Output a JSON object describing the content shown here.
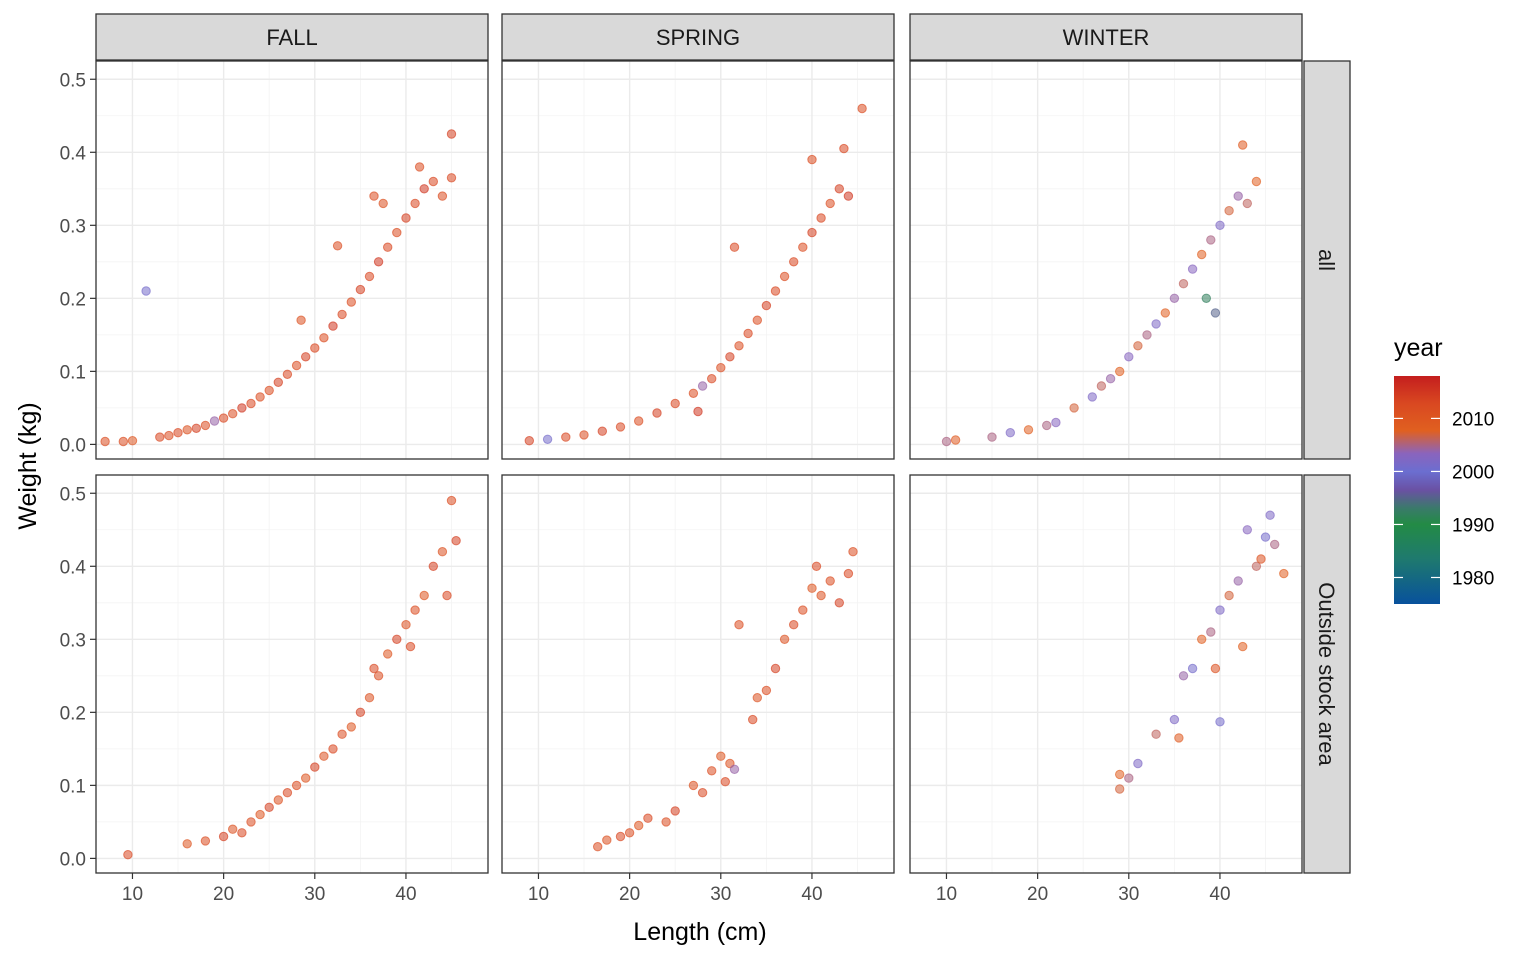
{
  "chart_data": {
    "type": "scatter",
    "xlabel": "Length (cm)",
    "ylabel": "Weight (kg)",
    "xlim": [
      6,
      49
    ],
    "ylim": [
      -0.02,
      0.525
    ],
    "x_ticks": [
      "10",
      "20",
      "30",
      "40"
    ],
    "y_ticks": [
      "0.0",
      "0.1",
      "0.2",
      "0.3",
      "0.4",
      "0.5"
    ],
    "x_tick_values": [
      10,
      20,
      30,
      40
    ],
    "y_tick_values": [
      0.0,
      0.1,
      0.2,
      0.3,
      0.4,
      0.5
    ],
    "facet_columns": [
      "FALL",
      "SPRING",
      "WINTER"
    ],
    "facet_rows": [
      "all",
      "Outside stock area"
    ],
    "grid": true,
    "legend": {
      "title": "year",
      "type": "colorbar",
      "placement": "right",
      "range": [
        1975,
        2018
      ],
      "breaks": [
        "2010",
        "2000",
        "1990",
        "1980"
      ],
      "break_values": [
        2010,
        2000,
        1990,
        1980
      ],
      "colors": [
        "#08519c",
        "#1f7a6e",
        "#238b45",
        "#3a7a6a",
        "#6a51a3",
        "#6b6ed0",
        "#8a64bd",
        "#e06020",
        "#d94821",
        "#c41e1e"
      ],
      "color_stops": [
        0,
        0.2,
        0.35,
        0.42,
        0.5,
        0.58,
        0.66,
        0.76,
        0.88,
        1.0
      ]
    },
    "point_opacity": 0.55,
    "panels": [
      {
        "column": "FALL",
        "row": "all",
        "points": [
          [
            7,
            0.004,
            2012
          ],
          [
            9,
            0.004,
            2012
          ],
          [
            10,
            0.005,
            2010
          ],
          [
            11.5,
            0.21,
            2001
          ],
          [
            13,
            0.01,
            2013
          ],
          [
            14,
            0.012,
            2012
          ],
          [
            15,
            0.016,
            2013
          ],
          [
            16,
            0.02,
            2011
          ],
          [
            17,
            0.022,
            2014
          ],
          [
            18,
            0.026,
            2012
          ],
          [
            19,
            0.032,
            2004
          ],
          [
            20,
            0.036,
            2013
          ],
          [
            21,
            0.042,
            2012
          ],
          [
            22,
            0.05,
            2015
          ],
          [
            23,
            0.056,
            2013
          ],
          [
            24,
            0.065,
            2012
          ],
          [
            25,
            0.074,
            2012
          ],
          [
            26,
            0.085,
            2014
          ],
          [
            27,
            0.096,
            2013
          ],
          [
            28,
            0.108,
            2012
          ],
          [
            28.5,
            0.17,
            2011
          ],
          [
            29,
            0.12,
            2014
          ],
          [
            30,
            0.132,
            2013
          ],
          [
            31,
            0.146,
            2012
          ],
          [
            32,
            0.162,
            2015
          ],
          [
            32.5,
            0.272,
            2012
          ],
          [
            33,
            0.178,
            2013
          ],
          [
            34,
            0.195,
            2012
          ],
          [
            35,
            0.212,
            2014
          ],
          [
            36,
            0.23,
            2013
          ],
          [
            36.5,
            0.34,
            2012
          ],
          [
            37,
            0.25,
            2015
          ],
          [
            37.5,
            0.33,
            2011
          ],
          [
            38,
            0.27,
            2013
          ],
          [
            39,
            0.29,
            2012
          ],
          [
            40,
            0.31,
            2014
          ],
          [
            41,
            0.33,
            2013
          ],
          [
            41.5,
            0.38,
            2012
          ],
          [
            42,
            0.35,
            2015
          ],
          [
            43,
            0.36,
            2013
          ],
          [
            44,
            0.34,
            2012
          ],
          [
            45,
            0.425,
            2014
          ],
          [
            45,
            0.365,
            2013
          ]
        ]
      },
      {
        "column": "SPRING",
        "row": "all",
        "points": [
          [
            9,
            0.005,
            2014
          ],
          [
            11,
            0.007,
            2001
          ],
          [
            13,
            0.01,
            2013
          ],
          [
            15,
            0.013,
            2012
          ],
          [
            17,
            0.018,
            2014
          ],
          [
            19,
            0.024,
            2013
          ],
          [
            21,
            0.032,
            2012
          ],
          [
            23,
            0.043,
            2014
          ],
          [
            25,
            0.056,
            2013
          ],
          [
            27,
            0.07,
            2012
          ],
          [
            27.5,
            0.045,
            2015
          ],
          [
            28,
            0.08,
            2004
          ],
          [
            29,
            0.09,
            2013
          ],
          [
            30,
            0.105,
            2012
          ],
          [
            31,
            0.12,
            2014
          ],
          [
            31.5,
            0.27,
            2013
          ],
          [
            32,
            0.135,
            2012
          ],
          [
            33,
            0.152,
            2013
          ],
          [
            34,
            0.17,
            2012
          ],
          [
            35,
            0.19,
            2014
          ],
          [
            36,
            0.21,
            2013
          ],
          [
            37,
            0.23,
            2012
          ],
          [
            38,
            0.25,
            2013
          ],
          [
            39,
            0.27,
            2012
          ],
          [
            40,
            0.29,
            2014
          ],
          [
            40,
            0.39,
            2012
          ],
          [
            41,
            0.31,
            2013
          ],
          [
            42,
            0.33,
            2012
          ],
          [
            43,
            0.35,
            2014
          ],
          [
            43.5,
            0.405,
            2013
          ],
          [
            44,
            0.34,
            2015
          ],
          [
            45.5,
            0.46,
            2012
          ]
        ]
      },
      {
        "column": "WINTER",
        "row": "all",
        "points": [
          [
            10,
            0.004,
            2005
          ],
          [
            11,
            0.006,
            2009
          ],
          [
            15,
            0.01,
            2005
          ],
          [
            17,
            0.016,
            2002
          ],
          [
            19,
            0.02,
            2008
          ],
          [
            21,
            0.026,
            2005
          ],
          [
            22,
            0.03,
            2003
          ],
          [
            24,
            0.05,
            2007
          ],
          [
            26,
            0.065,
            2002
          ],
          [
            27,
            0.08,
            2006
          ],
          [
            28,
            0.09,
            2004
          ],
          [
            29,
            0.1,
            2008
          ],
          [
            30,
            0.12,
            2003
          ],
          [
            31,
            0.135,
            2007
          ],
          [
            32,
            0.15,
            2005
          ],
          [
            33,
            0.165,
            2002
          ],
          [
            34,
            0.18,
            2008
          ],
          [
            35,
            0.2,
            2004
          ],
          [
            36,
            0.22,
            2006
          ],
          [
            37,
            0.24,
            2003
          ],
          [
            38,
            0.26,
            2008
          ],
          [
            38.5,
            0.2,
            1992
          ],
          [
            39,
            0.28,
            2005
          ],
          [
            39.5,
            0.18,
            1995
          ],
          [
            40,
            0.3,
            2002
          ],
          [
            41,
            0.32,
            2007
          ],
          [
            42,
            0.34,
            2004
          ],
          [
            42.5,
            0.41,
            2009
          ],
          [
            43,
            0.33,
            2006
          ],
          [
            44,
            0.36,
            2008
          ]
        ]
      },
      {
        "column": "FALL",
        "row": "Outside stock area",
        "points": [
          [
            9.5,
            0.005,
            2013
          ],
          [
            16,
            0.02,
            2010
          ],
          [
            18,
            0.024,
            2012
          ],
          [
            20,
            0.03,
            2014
          ],
          [
            21,
            0.04,
            2011
          ],
          [
            22,
            0.035,
            2013
          ],
          [
            23,
            0.05,
            2012
          ],
          [
            24,
            0.06,
            2010
          ],
          [
            25,
            0.07,
            2014
          ],
          [
            26,
            0.08,
            2011
          ],
          [
            27,
            0.09,
            2013
          ],
          [
            28,
            0.1,
            2012
          ],
          [
            29,
            0.11,
            2010
          ],
          [
            30,
            0.125,
            2014
          ],
          [
            31,
            0.14,
            2011
          ],
          [
            32,
            0.15,
            2013
          ],
          [
            33,
            0.17,
            2012
          ],
          [
            34,
            0.18,
            2010
          ],
          [
            35,
            0.2,
            2014
          ],
          [
            36,
            0.22,
            2011
          ],
          [
            36.5,
            0.26,
            2013
          ],
          [
            37,
            0.25,
            2012
          ],
          [
            38,
            0.28,
            2010
          ],
          [
            39,
            0.3,
            2014
          ],
          [
            40,
            0.32,
            2011
          ],
          [
            40.5,
            0.29,
            2013
          ],
          [
            41,
            0.34,
            2012
          ],
          [
            42,
            0.36,
            2010
          ],
          [
            43,
            0.4,
            2014
          ],
          [
            44,
            0.42,
            2011
          ],
          [
            44.5,
            0.36,
            2013
          ],
          [
            45,
            0.49,
            2012
          ],
          [
            45.5,
            0.435,
            2014
          ]
        ]
      },
      {
        "column": "SPRING",
        "row": "Outside stock area",
        "points": [
          [
            16.5,
            0.016,
            2012
          ],
          [
            17.5,
            0.025,
            2011
          ],
          [
            19,
            0.03,
            2013
          ],
          [
            20,
            0.035,
            2012
          ],
          [
            21,
            0.045,
            2010
          ],
          [
            22,
            0.055,
            2013
          ],
          [
            24,
            0.05,
            2012
          ],
          [
            25,
            0.065,
            2014
          ],
          [
            27,
            0.1,
            2011
          ],
          [
            28,
            0.09,
            2013
          ],
          [
            29,
            0.12,
            2012
          ],
          [
            30,
            0.14,
            2010
          ],
          [
            30.5,
            0.105,
            2013
          ],
          [
            31,
            0.13,
            2011
          ],
          [
            31.5,
            0.122,
            2004
          ],
          [
            32,
            0.32,
            2012
          ],
          [
            33.5,
            0.19,
            2013
          ],
          [
            34,
            0.22,
            2011
          ],
          [
            35,
            0.23,
            2012
          ],
          [
            36,
            0.26,
            2014
          ],
          [
            37,
            0.3,
            2011
          ],
          [
            38,
            0.32,
            2013
          ],
          [
            39,
            0.34,
            2012
          ],
          [
            40,
            0.37,
            2010
          ],
          [
            40.5,
            0.4,
            2013
          ],
          [
            41,
            0.36,
            2011
          ],
          [
            42,
            0.38,
            2012
          ],
          [
            43,
            0.35,
            2014
          ],
          [
            44,
            0.39,
            2013
          ],
          [
            44.5,
            0.42,
            2012
          ]
        ]
      },
      {
        "column": "WINTER",
        "row": "Outside stock area",
        "points": [
          [
            29,
            0.095,
            2007
          ],
          [
            29,
            0.115,
            2008
          ],
          [
            30,
            0.11,
            2005
          ],
          [
            31,
            0.13,
            2002
          ],
          [
            33,
            0.17,
            2006
          ],
          [
            35,
            0.19,
            2002
          ],
          [
            35.5,
            0.165,
            2009
          ],
          [
            36,
            0.25,
            2004
          ],
          [
            37,
            0.26,
            2001
          ],
          [
            38,
            0.3,
            2008
          ],
          [
            39,
            0.31,
            2005
          ],
          [
            39.5,
            0.26,
            2011
          ],
          [
            40,
            0.34,
            2002
          ],
          [
            40,
            0.187,
            2001
          ],
          [
            41,
            0.36,
            2007
          ],
          [
            42,
            0.38,
            2004
          ],
          [
            42.5,
            0.29,
            2008
          ],
          [
            43,
            0.45,
            2003
          ],
          [
            44,
            0.4,
            2006
          ],
          [
            45,
            0.44,
            2001
          ],
          [
            45.5,
            0.47,
            2002
          ],
          [
            46,
            0.43,
            2005
          ],
          [
            47,
            0.39,
            2008
          ],
          [
            44.5,
            0.41,
            2011
          ]
        ]
      }
    ]
  }
}
